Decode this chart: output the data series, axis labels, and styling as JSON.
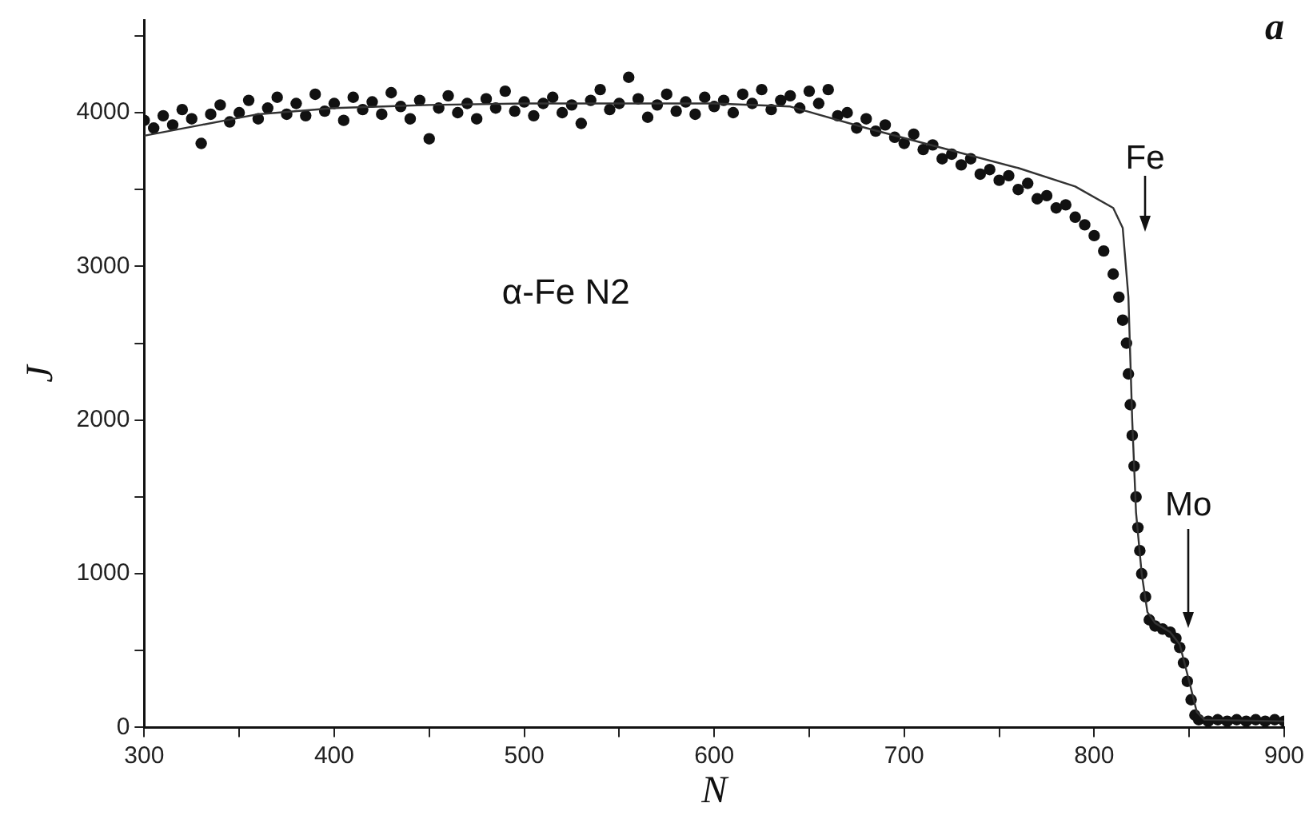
{
  "chart_data": {
    "type": "scatter",
    "title": "a",
    "xlabel": "N",
    "ylabel": "J",
    "xlim": [
      300,
      900
    ],
    "ylim": [
      0,
      4600
    ],
    "xticks": [
      300,
      {
        "value": 350,
        "label": null
      },
      400,
      {
        "value": 450,
        "label": null
      },
      500,
      {
        "value": 550,
        "label": null
      },
      600,
      {
        "value": 650,
        "label": null
      },
      700,
      {
        "value": 750,
        "label": null
      },
      800,
      {
        "value": 850,
        "label": null
      },
      900
    ],
    "yticks": [
      0,
      {
        "value": 500,
        "label": null
      },
      1000,
      {
        "value": 1500,
        "label": null
      },
      2000,
      {
        "value": 2500,
        "label": null
      },
      3000,
      {
        "value": 3500,
        "label": null
      },
      4000,
      {
        "value": 4500,
        "label": null
      }
    ],
    "grid": false,
    "legend": false,
    "marker": "circle",
    "annotations": [
      "α-Fe N2",
      "Fe",
      "Mo"
    ],
    "series": [
      {
        "type": "scatter",
        "color": "#111111",
        "x": [
          300,
          305,
          310,
          315,
          320,
          325,
          330,
          335,
          340,
          345,
          350,
          355,
          360,
          365,
          370,
          375,
          380,
          385,
          390,
          395,
          400,
          405,
          410,
          415,
          420,
          425,
          430,
          435,
          440,
          445,
          450,
          455,
          460,
          465,
          470,
          475,
          480,
          485,
          490,
          495,
          500,
          505,
          510,
          515,
          520,
          525,
          530,
          535,
          540,
          545,
          550,
          555,
          560,
          565,
          570,
          575,
          580,
          585,
          590,
          595,
          600,
          605,
          610,
          615,
          620,
          625,
          630,
          635,
          640,
          645,
          650,
          655,
          660,
          665,
          670,
          675,
          680,
          685,
          690,
          695,
          700,
          705,
          710,
          715,
          720,
          725,
          730,
          735,
          740,
          745,
          750,
          755,
          760,
          765,
          770,
          775,
          780,
          785,
          790,
          795,
          800,
          805,
          810,
          813,
          815,
          817,
          818,
          819,
          820,
          821,
          822,
          823,
          824,
          825,
          827,
          829,
          832,
          836,
          840,
          843,
          845,
          847,
          849,
          851,
          853,
          855,
          860,
          865,
          870,
          875,
          880,
          885,
          890,
          895,
          900
        ],
        "values": [
          3950,
          3900,
          3980,
          3920,
          4020,
          3960,
          3800,
          3990,
          4050,
          3940,
          4000,
          4080,
          3960,
          4030,
          4100,
          3990,
          4060,
          3980,
          4120,
          4010,
          4060,
          3950,
          4100,
          4020,
          4070,
          3990,
          4130,
          4040,
          3960,
          4080,
          3830,
          4030,
          4110,
          4000,
          4060,
          3960,
          4090,
          4030,
          4140,
          4010,
          4070,
          3980,
          4060,
          4100,
          4000,
          4050,
          3930,
          4080,
          4150,
          4020,
          4060,
          4230,
          4090,
          3970,
          4050,
          4120,
          4010,
          4070,
          3990,
          4100,
          4040,
          4080,
          4000,
          4120,
          4060,
          4150,
          4020,
          4080,
          4110,
          4030,
          4140,
          4060,
          4150,
          3980,
          4000,
          3900,
          3960,
          3880,
          3920,
          3840,
          3800,
          3860,
          3760,
          3790,
          3700,
          3730,
          3660,
          3700,
          3600,
          3630,
          3560,
          3590,
          3500,
          3540,
          3440,
          3460,
          3380,
          3400,
          3320,
          3270,
          3200,
          3100,
          2950,
          2800,
          2650,
          2500,
          2300,
          2100,
          1900,
          1700,
          1500,
          1300,
          1150,
          1000,
          850,
          700,
          660,
          640,
          620,
          580,
          520,
          420,
          300,
          180,
          80,
          50,
          40,
          50,
          40,
          50,
          40,
          50,
          40,
          50,
          40
        ]
      },
      {
        "type": "line",
        "color": "#333333",
        "marker": "none",
        "x": [
          300,
          330,
          360,
          400,
          450,
          500,
          550,
          600,
          640,
          680,
          720,
          760,
          790,
          810,
          815,
          818,
          820,
          822,
          825,
          828,
          832,
          840,
          845,
          850,
          854,
          858,
          900
        ],
        "values": [
          3850,
          3920,
          3990,
          4030,
          4050,
          4060,
          4060,
          4060,
          4040,
          3900,
          3770,
          3640,
          3520,
          3380,
          3250,
          2800,
          2000,
          1400,
          1000,
          750,
          680,
          620,
          540,
          300,
          100,
          50,
          40
        ]
      }
    ]
  }
}
